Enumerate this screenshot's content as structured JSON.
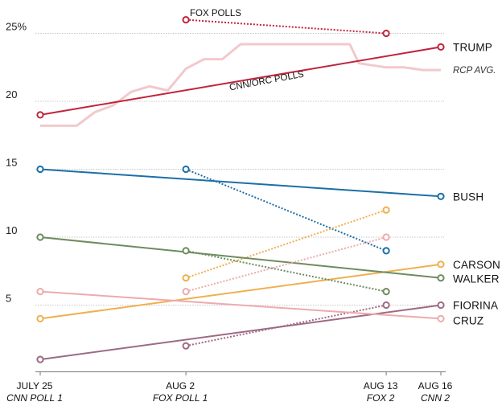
{
  "chart_data": {
    "type": "line",
    "title": "",
    "xlabel": "",
    "ylabel": "",
    "ylim": [
      0,
      27
    ],
    "yticks": [
      {
        "value": 25,
        "label": "25%"
      },
      {
        "value": 20,
        "label": "20"
      },
      {
        "value": 15,
        "label": "15"
      },
      {
        "value": 10,
        "label": "10"
      },
      {
        "value": 5,
        "label": "5"
      }
    ],
    "grid": true,
    "x_dates": [
      {
        "key": "jul25",
        "day": 0,
        "label": "JULY 25",
        "sublabel": "CNN POLL 1"
      },
      {
        "key": "aug2",
        "day": 8,
        "label": "AUG 2",
        "sublabel": "FOX POLL 1"
      },
      {
        "key": "aug13",
        "day": 19,
        "label": "AUG 13",
        "sublabel": "FOX 2"
      },
      {
        "key": "aug16",
        "day": 22,
        "label": "AUG 16",
        "sublabel": "CNN 2"
      }
    ],
    "series": [
      {
        "name": "TRUMP",
        "color": "#c0243d",
        "cnn": [
          {
            "x": "jul25",
            "y": 19
          },
          {
            "x": "aug16",
            "y": 24
          }
        ],
        "fox": [
          {
            "x": "aug2",
            "y": 26
          },
          {
            "x": "aug13",
            "y": 25
          }
        ]
      },
      {
        "name": "BUSH",
        "color": "#1b6fa8",
        "cnn": [
          {
            "x": "jul25",
            "y": 15
          },
          {
            "x": "aug16",
            "y": 13
          }
        ],
        "fox": [
          {
            "x": "aug2",
            "y": 15
          },
          {
            "x": "aug13",
            "y": 9
          }
        ]
      },
      {
        "name": "CARSON",
        "color": "#eeb04f",
        "cnn": [
          {
            "x": "jul25",
            "y": 4
          },
          {
            "x": "aug16",
            "y": 8
          }
        ],
        "fox": [
          {
            "x": "aug2",
            "y": 7
          },
          {
            "x": "aug13",
            "y": 12
          }
        ]
      },
      {
        "name": "WALKER",
        "color": "#6e8c5f",
        "cnn": [
          {
            "x": "jul25",
            "y": 10
          },
          {
            "x": "aug16",
            "y": 7
          }
        ],
        "fox": [
          {
            "x": "aug2",
            "y": 9
          },
          {
            "x": "aug13",
            "y": 6
          }
        ]
      },
      {
        "name": "FIORINA",
        "color": "#9e6a84",
        "cnn": [
          {
            "x": "jul25",
            "y": 1
          },
          {
            "x": "aug16",
            "y": 5
          }
        ],
        "fox": [
          {
            "x": "aug2",
            "y": 2
          },
          {
            "x": "aug13",
            "y": 5
          }
        ]
      },
      {
        "name": "CRUZ",
        "color": "#eeaaac",
        "cnn": [
          {
            "x": "jul25",
            "y": 6
          },
          {
            "x": "aug16",
            "y": 4
          }
        ],
        "fox": [
          {
            "x": "aug2",
            "y": 6
          },
          {
            "x": "aug13",
            "y": 10
          }
        ]
      }
    ],
    "rcp_average": {
      "label": "RCP AVG.",
      "color": "#f2c9cc",
      "points": [
        {
          "day": 0,
          "y": 18.2
        },
        {
          "day": 2,
          "y": 18.2
        },
        {
          "day": 3,
          "y": 19.2
        },
        {
          "day": 4,
          "y": 19.7
        },
        {
          "day": 5,
          "y": 20.7
        },
        {
          "day": 6,
          "y": 21.1
        },
        {
          "day": 7,
          "y": 20.8
        },
        {
          "day": 8,
          "y": 22.4
        },
        {
          "day": 9,
          "y": 23.1
        },
        {
          "day": 10,
          "y": 23.1
        },
        {
          "day": 11,
          "y": 24.2
        },
        {
          "day": 12,
          "y": 24.2
        },
        {
          "day": 13,
          "y": 24.2
        },
        {
          "day": 14,
          "y": 24.2
        },
        {
          "day": 15,
          "y": 24.2
        },
        {
          "day": 16,
          "y": 24.2
        },
        {
          "day": 17,
          "y": 24.2
        },
        {
          "day": 17.5,
          "y": 22.8
        },
        {
          "day": 19,
          "y": 22.5
        },
        {
          "day": 20,
          "y": 22.5
        },
        {
          "day": 21,
          "y": 22.3
        },
        {
          "day": 22,
          "y": 22.3
        }
      ]
    },
    "annotations": {
      "fox_polls": "FOX POLLS",
      "cnn_polls": "CNN/ORC POLLS"
    }
  }
}
